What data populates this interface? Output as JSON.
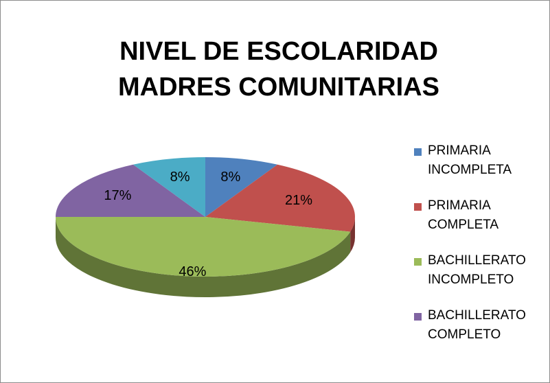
{
  "chart_data": {
    "type": "pie3d",
    "title": "NIVEL DE ESCOLARIDAD MADRES COMUNITARIAS",
    "categories": [
      "PRIMARIA INCOMPLETA",
      "PRIMARIA COMPLETA",
      "BACHILLERATO INCOMPLETO",
      "BACHILLERATO COMPLETO",
      null
    ],
    "values": [
      8,
      21,
      46,
      17,
      8
    ],
    "value_labels": [
      "8%",
      "21%",
      "46%",
      "17%",
      "8%"
    ],
    "colors": [
      "#4f81bd",
      "#c0504d",
      "#9bbb59",
      "#8064a2",
      "#4bacc6"
    ],
    "legend": "right"
  }
}
